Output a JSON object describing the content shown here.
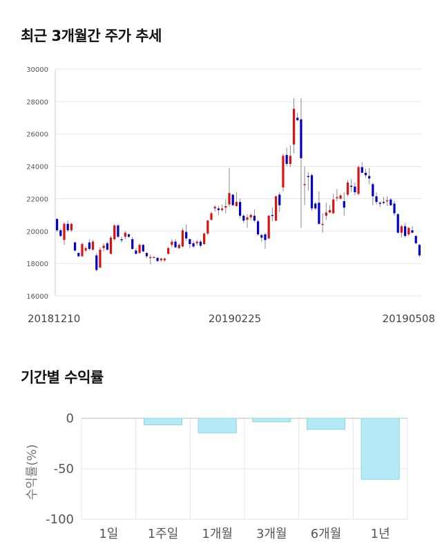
{
  "titles": {
    "price_chart": "최근 3개월간 주가 추세",
    "returns_chart": "기간별 수익률"
  },
  "colors": {
    "up": "#dd1111",
    "down": "#0000cc",
    "bar_fill": "#b3eaf5",
    "bar_stroke": "#8fd3e2",
    "grid": "#e6e6e6"
  },
  "chart_data": [
    {
      "type": "candlestick",
      "title": "최근 3개월간 주가 추세",
      "ylim": [
        16000,
        30000
      ],
      "y_ticks": [
        "16000",
        "18000",
        "20000",
        "22000",
        "24000",
        "26000",
        "28000",
        "30000"
      ],
      "x_labels": [
        "20181210",
        "20190225",
        "20190508"
      ],
      "grid": true,
      "candles": [
        [
          20750,
          20800,
          19950,
          20050
        ],
        [
          20050,
          20150,
          19650,
          19700
        ],
        [
          19450,
          20550,
          19150,
          20450
        ],
        [
          20450,
          20650,
          19950,
          20050
        ],
        [
          20050,
          20500,
          19950,
          20450
        ],
        [
          19300,
          19350,
          18750,
          18800
        ],
        [
          18650,
          18700,
          18400,
          18450
        ],
        [
          18450,
          19300,
          18400,
          19200
        ],
        [
          18800,
          19050,
          18700,
          18950
        ],
        [
          19300,
          19500,
          18800,
          18900
        ],
        [
          18850,
          19450,
          18800,
          19350
        ],
        [
          18500,
          18650,
          17500,
          17600
        ],
        [
          17750,
          19000,
          17700,
          18850
        ],
        [
          18950,
          19250,
          18750,
          19100
        ],
        [
          19250,
          19350,
          18800,
          18850
        ],
        [
          18600,
          19700,
          18550,
          19600
        ],
        [
          19500,
          20450,
          19400,
          20350
        ],
        [
          20350,
          20450,
          19600,
          19650
        ],
        [
          19500,
          19650,
          19300,
          19450
        ],
        [
          19650,
          20000,
          19500,
          19900
        ],
        [
          19800,
          19850,
          19600,
          19650
        ],
        [
          19500,
          19650,
          18850,
          18900
        ],
        [
          18800,
          18950,
          18550,
          18600
        ],
        [
          18650,
          19250,
          18600,
          19150
        ],
        [
          19150,
          19200,
          18700,
          18750
        ],
        [
          18650,
          18700,
          18350,
          18450
        ],
        [
          18350,
          18550,
          17950,
          18400
        ],
        [
          18400,
          18450,
          18350,
          18400
        ],
        [
          18350,
          18400,
          18100,
          18150
        ],
        [
          18200,
          18350,
          18100,
          18300
        ],
        [
          18200,
          18350,
          18100,
          18300
        ],
        [
          18600,
          19050,
          18550,
          18950
        ],
        [
          19150,
          19500,
          19000,
          19350
        ],
        [
          19350,
          19500,
          18950,
          19000
        ],
        [
          18950,
          19250,
          18900,
          19150
        ],
        [
          19050,
          20200,
          19000,
          20050
        ],
        [
          19950,
          20400,
          19400,
          19550
        ],
        [
          19500,
          19550,
          18950,
          19200
        ],
        [
          19250,
          19400,
          18950,
          19050
        ],
        [
          19250,
          19450,
          19100,
          19350
        ],
        [
          19350,
          19450,
          19000,
          19100
        ],
        [
          19200,
          19900,
          19150,
          19850
        ],
        [
          19850,
          20700,
          19750,
          20650
        ],
        [
          20700,
          21200,
          20650,
          21100
        ],
        [
          21400,
          21600,
          21200,
          21500
        ],
        [
          21400,
          21550,
          21000,
          21300
        ],
        [
          21300,
          21650,
          21200,
          21400
        ],
        [
          21450,
          21950,
          21100,
          21550
        ],
        [
          21650,
          23900,
          21500,
          22350
        ],
        [
          22250,
          22300,
          21550,
          21600
        ],
        [
          21550,
          22400,
          21500,
          21800
        ],
        [
          21800,
          22000,
          20800,
          20950
        ],
        [
          20950,
          21050,
          20500,
          20650
        ],
        [
          20700,
          21050,
          20200,
          20850
        ],
        [
          20850,
          21100,
          20700,
          21000
        ],
        [
          20950,
          21350,
          20550,
          20650
        ],
        [
          20600,
          20700,
          19700,
          19800
        ],
        [
          19750,
          19850,
          19350,
          19600
        ],
        [
          19800,
          19900,
          18900,
          19450
        ],
        [
          19550,
          21000,
          19500,
          20950
        ],
        [
          21000,
          21450,
          20600,
          20950
        ],
        [
          20650,
          22200,
          20600,
          22150
        ],
        [
          22250,
          22400,
          21200,
          21600
        ],
        [
          22700,
          24800,
          22450,
          24650
        ],
        [
          24700,
          25150,
          24000,
          24150
        ],
        [
          24150,
          25300,
          23950,
          24650
        ],
        [
          25350,
          28200,
          24800,
          27550
        ],
        [
          27000,
          27300,
          26800,
          26850
        ],
        [
          26900,
          28200,
          20200,
          24500
        ],
        [
          22900,
          24000,
          21600,
          22900
        ],
        [
          23400,
          23650,
          22500,
          23350
        ],
        [
          23450,
          23550,
          21250,
          21400
        ],
        [
          21700,
          21800,
          21300,
          21400
        ],
        [
          21750,
          22450,
          20400,
          20450
        ],
        [
          20400,
          21100,
          19900,
          20450
        ],
        [
          20950,
          21750,
          20700,
          21150
        ],
        [
          21150,
          21600,
          21100,
          21300
        ],
        [
          21100,
          22300,
          21050,
          21950
        ],
        [
          22050,
          22600,
          21850,
          22100
        ],
        [
          22000,
          22300,
          21950,
          22200
        ],
        [
          21850,
          22400,
          20950,
          21450
        ],
        [
          22250,
          23150,
          22150,
          23000
        ],
        [
          22800,
          23200,
          22400,
          22750
        ],
        [
          22750,
          23000,
          22200,
          22400
        ],
        [
          22300,
          24050,
          22200,
          23950
        ],
        [
          23950,
          24250,
          23650,
          23600
        ],
        [
          23600,
          23850,
          23300,
          23450
        ],
        [
          23400,
          23900,
          22900,
          23250
        ],
        [
          22900,
          23000,
          21600,
          22150
        ],
        [
          22150,
          22400,
          21650,
          21800
        ],
        [
          21750,
          21850,
          21500,
          21700
        ],
        [
          21800,
          22100,
          21650,
          21750
        ],
        [
          21850,
          22150,
          21550,
          21900
        ],
        [
          21950,
          22050,
          21550,
          21600
        ],
        [
          21700,
          21850,
          20950,
          21100
        ],
        [
          21050,
          21100,
          19850,
          19900
        ],
        [
          19900,
          20400,
          19600,
          20300
        ],
        [
          20300,
          20500,
          19600,
          19700
        ],
        [
          19800,
          20250,
          19700,
          20200
        ],
        [
          20050,
          20300,
          19950,
          19900
        ],
        [
          19700,
          19750,
          19200,
          19250
        ],
        [
          19150,
          19200,
          18400,
          18500
        ]
      ]
    },
    {
      "type": "bar",
      "title": "기간별 수익률",
      "ylabel": "수익률(%)",
      "ylim": [
        -100,
        0
      ],
      "y_ticks": [
        "0",
        "-50",
        "-100"
      ],
      "categories": [
        "1일",
        "1주일",
        "1개월",
        "3개월",
        "6개월",
        "1년"
      ],
      "values": [
        0,
        -6.5,
        -14.5,
        -3.5,
        -11.0,
        -60.5
      ],
      "grid": true
    }
  ]
}
